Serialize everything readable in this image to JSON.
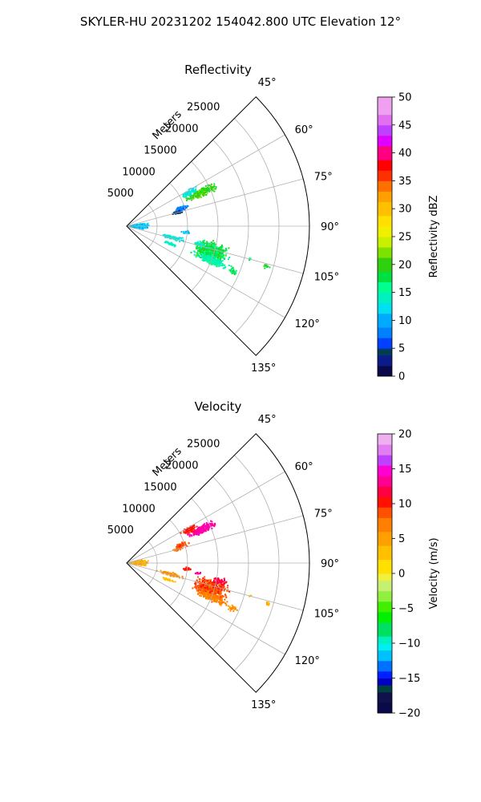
{
  "figure": {
    "suptitle": "SKYLER-HU  20231202  154042.800 UTC Elevation 12°"
  },
  "chart_data": [
    {
      "type": "polar-sector",
      "title": "Reflectivity",
      "radial_label": "Meters",
      "radial_ticks": [
        5000,
        10000,
        15000,
        20000,
        25000
      ],
      "radial_tick_labels": [
        "5000",
        "10000",
        "15000",
        "20000",
        "25000"
      ],
      "angle_ticks": [
        45,
        60,
        75,
        90,
        105,
        120,
        135
      ],
      "angle_tick_labels": [
        "45°",
        "60°",
        "75°",
        "90°",
        "105°",
        "120°",
        "135°"
      ],
      "theta_range": [
        45,
        135
      ],
      "r_max": 30000,
      "grid": true,
      "colorbar": {
        "label": "Reflectivity dBZ",
        "vmin": 0,
        "vmax": 50,
        "ticks": [
          0,
          5,
          10,
          15,
          20,
          25,
          30,
          35,
          40,
          45,
          50
        ],
        "tick_labels": [
          "0",
          "5",
          "10",
          "15",
          "20",
          "25",
          "30",
          "35",
          "40",
          "45",
          "50"
        ]
      },
      "echo_regions": [
        {
          "theta": 66,
          "r": 13500,
          "dtheta": 3.5,
          "dr": 3200,
          "value": 20,
          "spread": 3,
          "density": 0.8
        },
        {
          "theta": 62,
          "r": 11500,
          "dtheta": 3,
          "dr": 1800,
          "value": 13,
          "spread": 2,
          "density": 0.55
        },
        {
          "theta": 72,
          "r": 9500,
          "dtheta": 3,
          "dr": 1500,
          "value": 8,
          "spread": 2.5,
          "density": 0.6
        },
        {
          "theta": 75,
          "r": 8500,
          "dtheta": 2,
          "dr": 1200,
          "value": 4,
          "spread": 2,
          "density": 0.45
        },
        {
          "theta": 90,
          "r": 2000,
          "dtheta": 12,
          "dr": 1900,
          "value": 11,
          "spread": 2,
          "density": 0.7
        },
        {
          "theta": 96,
          "r": 9800,
          "dtheta": 2,
          "dr": 1000,
          "value": 11,
          "spread": 2,
          "density": 0.45
        },
        {
          "theta": 104,
          "r": 7500,
          "dtheta": 3,
          "dr": 2500,
          "value": 13,
          "spread": 2,
          "density": 0.45
        },
        {
          "theta": 112,
          "r": 7500,
          "dtheta": 2,
          "dr": 1500,
          "value": 14,
          "spread": 2,
          "density": 0.4
        },
        {
          "theta": 107,
          "r": 14500,
          "dtheta": 8,
          "dr": 3500,
          "value": 18,
          "spread": 5,
          "density": 0.85
        },
        {
          "theta": 112,
          "r": 15000,
          "dtheta": 3.5,
          "dr": 3500,
          "value": 15,
          "spread": 3,
          "density": 0.55
        },
        {
          "theta": 104,
          "r": 12500,
          "dtheta": 2,
          "dr": 1500,
          "value": 14,
          "spread": 2,
          "density": 0.45
        },
        {
          "theta": 113,
          "r": 19000,
          "dtheta": 2,
          "dr": 1000,
          "value": 18,
          "spread": 3,
          "density": 0.45
        },
        {
          "theta": 106,
          "r": 24000,
          "dtheta": 1.2,
          "dr": 800,
          "value": 19,
          "spread": 2,
          "density": 0.45
        },
        {
          "theta": 105,
          "r": 21000,
          "dtheta": 0.8,
          "dr": 500,
          "value": 17,
          "spread": 2,
          "density": 0.4
        }
      ]
    },
    {
      "type": "polar-sector",
      "title": "Velocity",
      "radial_label": "Meters",
      "radial_ticks": [
        5000,
        10000,
        15000,
        20000,
        25000
      ],
      "radial_tick_labels": [
        "5000",
        "10000",
        "15000",
        "20000",
        "25000"
      ],
      "angle_ticks": [
        45,
        60,
        75,
        90,
        105,
        120,
        135
      ],
      "angle_tick_labels": [
        "45°",
        "60°",
        "75°",
        "90°",
        "105°",
        "120°",
        "135°"
      ],
      "theta_range": [
        45,
        135
      ],
      "r_max": 30000,
      "grid": true,
      "colorbar": {
        "label": "Velocity (m/s)",
        "vmin": -20,
        "vmax": 20,
        "ticks": [
          -20,
          -15,
          -10,
          -5,
          0,
          5,
          10,
          15,
          20
        ],
        "tick_labels": [
          "−20",
          "−15",
          "−10",
          "−5",
          "0",
          "5",
          "10",
          "15",
          "20"
        ]
      },
      "echo_regions": [
        {
          "theta": 66,
          "r": 13500,
          "dtheta": 3.5,
          "dr": 3200,
          "value": 14,
          "spread": 2,
          "density": 0.8
        },
        {
          "theta": 62,
          "r": 11500,
          "dtheta": 3,
          "dr": 1800,
          "value": 10,
          "spread": 1.5,
          "density": 0.55
        },
        {
          "theta": 72,
          "r": 9500,
          "dtheta": 3,
          "dr": 1500,
          "value": 9,
          "spread": 1.5,
          "density": 0.6
        },
        {
          "theta": 75,
          "r": 8500,
          "dtheta": 2,
          "dr": 1200,
          "value": 8,
          "spread": 1.5,
          "density": 0.45
        },
        {
          "theta": 90,
          "r": 2000,
          "dtheta": 12,
          "dr": 1900,
          "value": 4,
          "spread": 3,
          "density": 0.7
        },
        {
          "theta": 96,
          "r": 9800,
          "dtheta": 2,
          "dr": 1000,
          "value": 10,
          "spread": 1.5,
          "density": 0.45
        },
        {
          "theta": 98,
          "r": 11800,
          "dtheta": 1.2,
          "dr": 700,
          "value": 14,
          "spread": 1,
          "density": 0.45
        },
        {
          "theta": 104,
          "r": 7500,
          "dtheta": 3,
          "dr": 2500,
          "value": 6,
          "spread": 2,
          "density": 0.45
        },
        {
          "theta": 112,
          "r": 7500,
          "dtheta": 2,
          "dr": 1500,
          "value": 3,
          "spread": 1.5,
          "density": 0.4
        },
        {
          "theta": 107,
          "r": 14500,
          "dtheta": 8,
          "dr": 3500,
          "value": 9,
          "spread": 3,
          "density": 0.85
        },
        {
          "theta": 112,
          "r": 15000,
          "dtheta": 3.5,
          "dr": 3500,
          "value": 7,
          "spread": 2,
          "density": 0.55
        },
        {
          "theta": 101,
          "r": 15500,
          "dtheta": 2.5,
          "dr": 1500,
          "value": 12,
          "spread": 1,
          "density": 0.5
        },
        {
          "theta": 113,
          "r": 19000,
          "dtheta": 2,
          "dr": 1000,
          "value": 6,
          "spread": 2,
          "density": 0.45
        },
        {
          "theta": 106,
          "r": 24000,
          "dtheta": 1.2,
          "dr": 800,
          "value": 4,
          "spread": 2,
          "density": 0.45
        },
        {
          "theta": 105,
          "r": 21000,
          "dtheta": 0.8,
          "dr": 500,
          "value": 3,
          "spread": 1.5,
          "density": 0.4
        }
      ]
    }
  ]
}
